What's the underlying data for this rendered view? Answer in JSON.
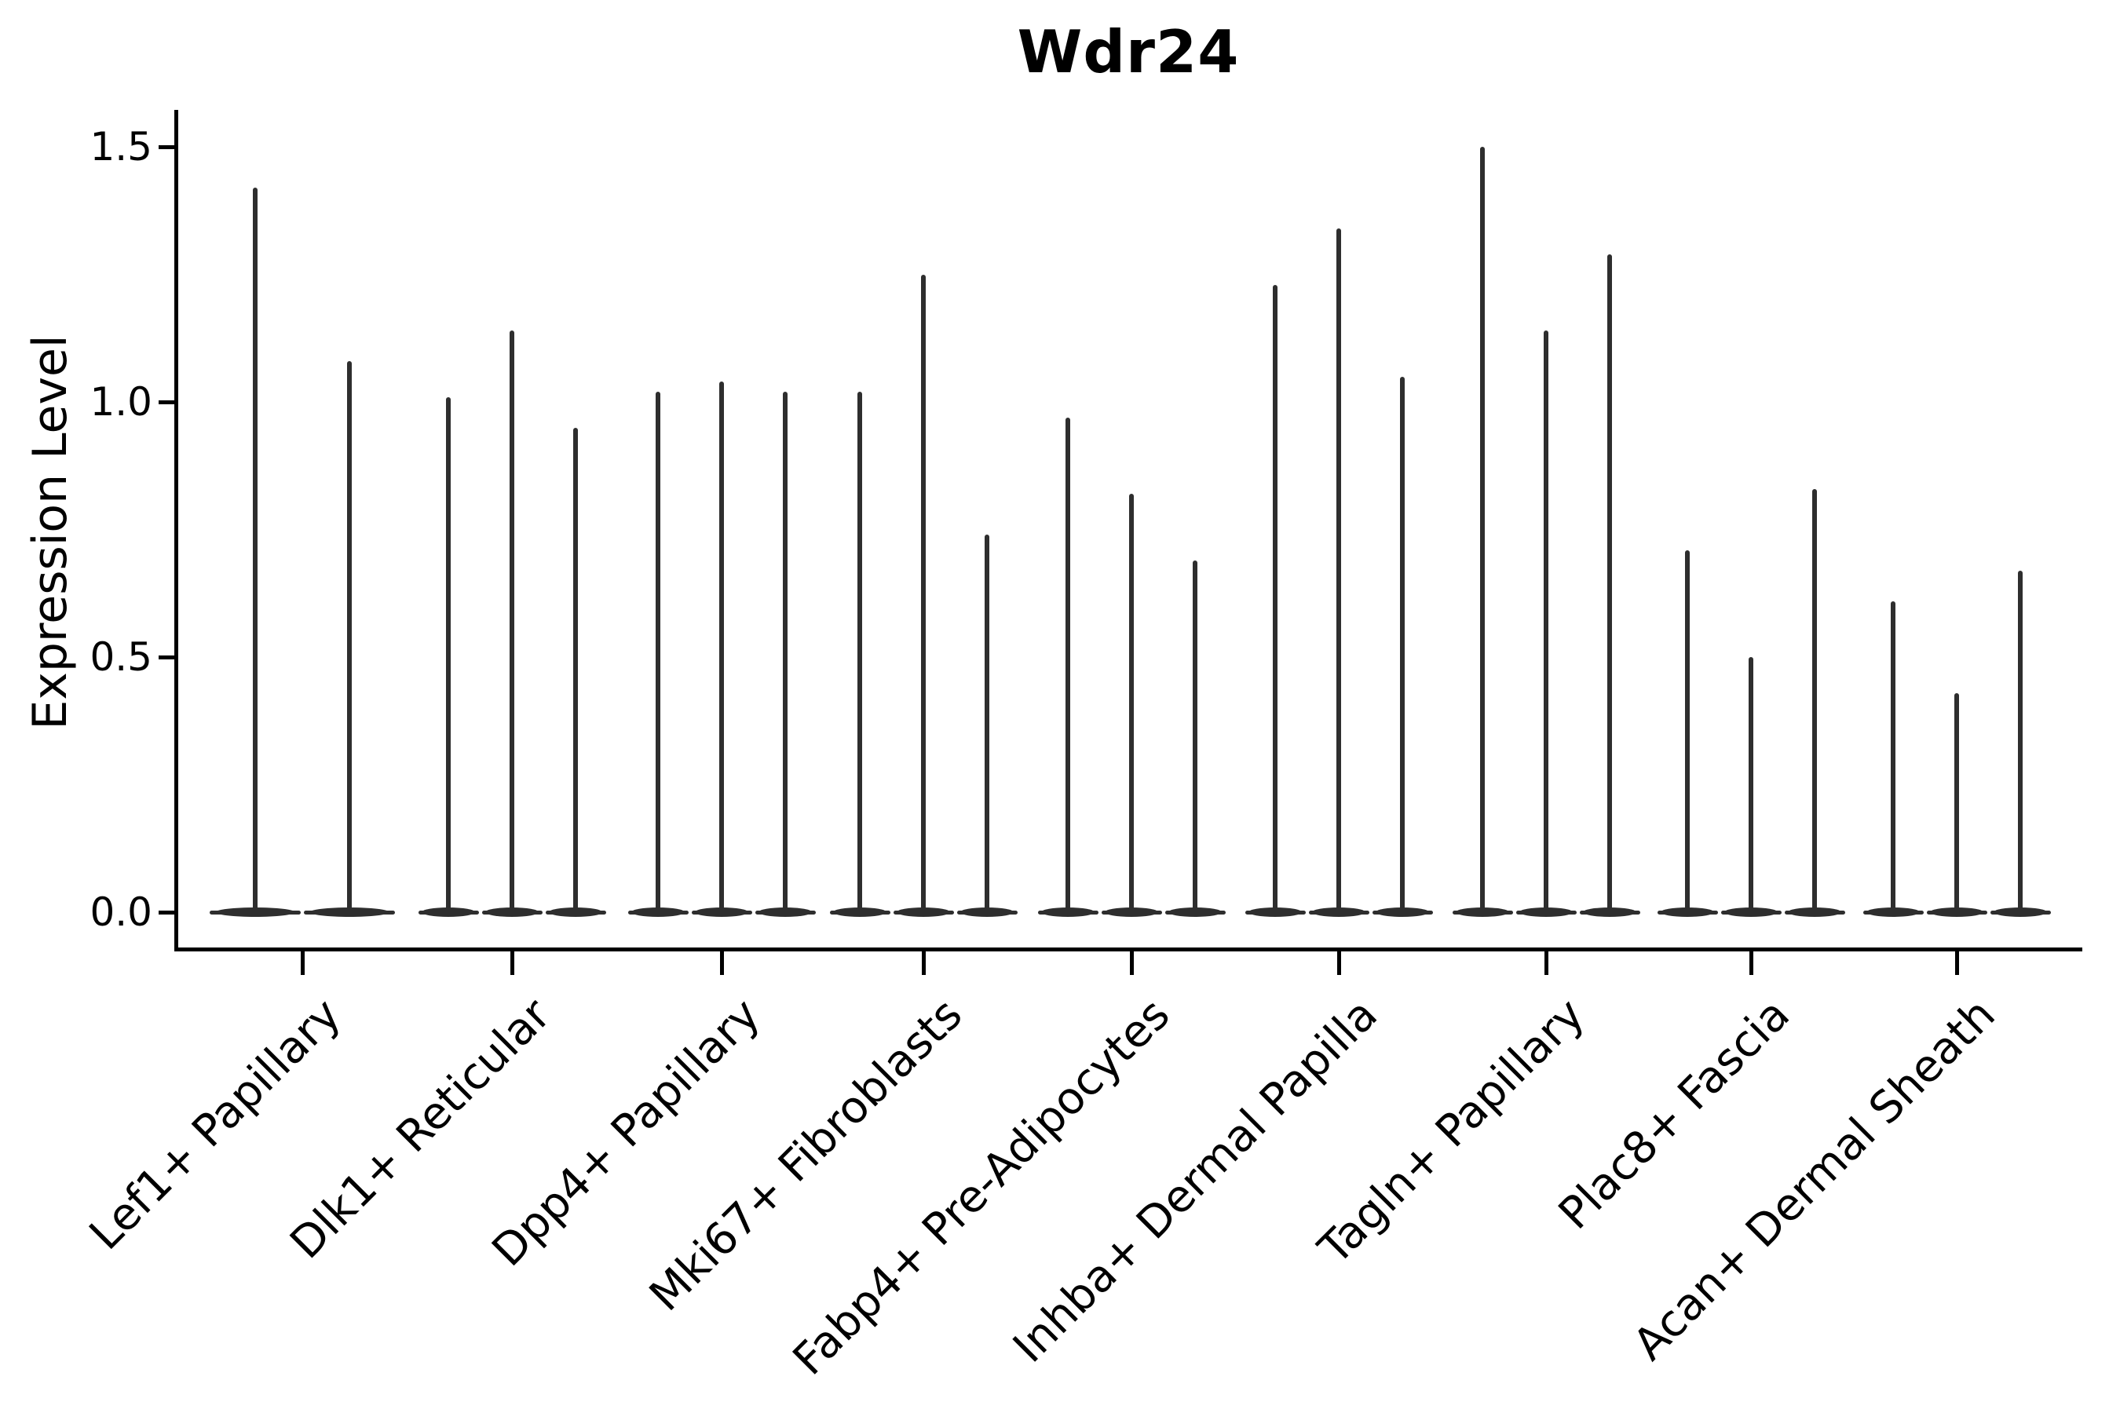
{
  "chart_data": {
    "type": "violin",
    "title": "Wdr24",
    "xlabel": "",
    "ylabel": "Expression Level",
    "categories": [
      "Lef1+ Papillary",
      "Dlk1+ Reticular",
      "Dpp4+ Papillary",
      "Mki67+ Fibroblasts",
      "Fabp4+ Pre-Adipocytes",
      "Inhba+ Dermal Papilla",
      "Tagln+ Papillary",
      "Plac8+ Fascia",
      "Acan+ Dermal Sheath"
    ],
    "series": [
      {
        "category": "Lef1+ Papillary",
        "spike_maxima": [
          1.42,
          1.08
        ]
      },
      {
        "category": "Dlk1+ Reticular",
        "spike_maxima": [
          1.01,
          1.14,
          0.95
        ]
      },
      {
        "category": "Dpp4+ Papillary",
        "spike_maxima": [
          1.02,
          1.04,
          1.02
        ]
      },
      {
        "category": "Mki67+ Fibroblasts",
        "spike_maxima": [
          1.02,
          1.25,
          0.74
        ]
      },
      {
        "category": "Fabp4+ Pre-Adipocytes",
        "spike_maxima": [
          0.97,
          0.82,
          0.69
        ]
      },
      {
        "category": "Inhba+ Dermal Papilla",
        "spike_maxima": [
          1.23,
          1.34,
          1.05
        ]
      },
      {
        "category": "Tagln+ Papillary",
        "spike_maxima": [
          1.5,
          1.14,
          1.29
        ]
      },
      {
        "category": "Plac8+ Fascia",
        "spike_maxima": [
          0.71,
          0.5,
          0.83
        ]
      },
      {
        "category": "Acan+ Dermal Sheath",
        "spike_maxima": [
          0.61,
          0.43,
          0.67
        ]
      }
    ],
    "description": "Violin plot of gene expression; most cells at 0 giving wide flat bases with thin density spikes up to each maximum.",
    "yticks": [
      "0.0",
      "0.5",
      "1.0",
      "1.5"
    ],
    "ytick_values": [
      0.0,
      0.5,
      1.0,
      1.5
    ],
    "ylim": [
      0,
      1.57
    ],
    "grid": "off",
    "legend": "none",
    "colors": {
      "violin": "#2e2e2e",
      "axis": "#000000",
      "text": "#000000",
      "background": "#ffffff"
    }
  }
}
